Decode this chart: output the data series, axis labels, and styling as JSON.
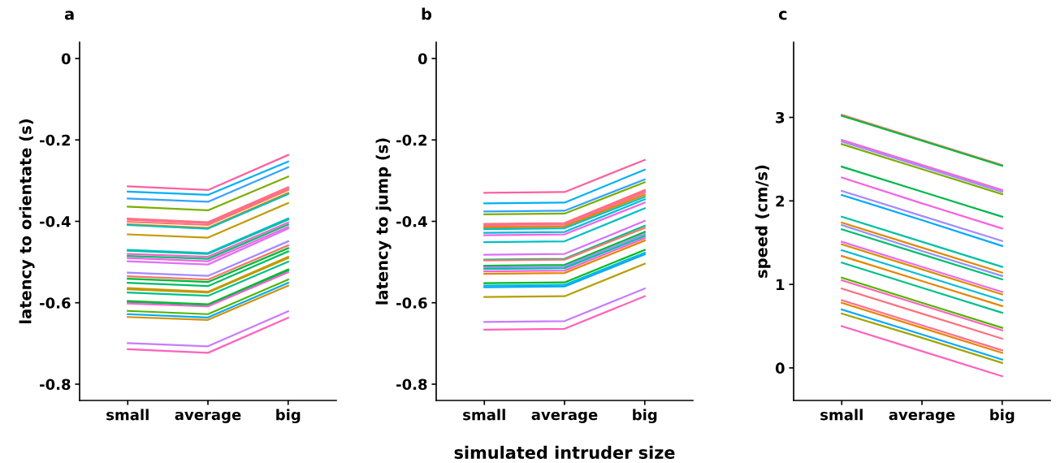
{
  "chart_data": [
    {
      "type": "line",
      "title": "a",
      "ylabel": "latency to orientate (s)",
      "categories": [
        "small",
        "average",
        "big"
      ],
      "ylim": [
        -0.84,
        0.04
      ],
      "yticks": [
        {
          "value": -0.8,
          "label": "-0.8"
        },
        {
          "value": -0.6,
          "label": "-0.6"
        },
        {
          "value": -0.4,
          "label": "-0.4"
        },
        {
          "value": -0.2,
          "label": "-0.2"
        },
        0
      ],
      "series": [
        {
          "color": "#fb61a0",
          "values": [
            -0.314,
            -0.323,
            -0.237
          ]
        },
        {
          "color": "#00b0f6",
          "values": [
            -0.327,
            -0.335,
            -0.253
          ]
        },
        {
          "color": "#35a2ff",
          "values": [
            -0.344,
            -0.352,
            -0.267
          ]
        },
        {
          "color": "#7cae00",
          "values": [
            -0.364,
            -0.373,
            -0.29
          ]
        },
        {
          "color": "#fc717f",
          "values": [
            -0.393,
            -0.402,
            -0.316
          ]
        },
        {
          "color": "#ff6c91",
          "values": [
            -0.396,
            -0.405,
            -0.32
          ]
        },
        {
          "color": "#f8766d",
          "values": [
            -0.401,
            -0.409,
            -0.323
          ]
        },
        {
          "color": "#e58700",
          "values": [
            -0.407,
            -0.416,
            -0.33
          ]
        },
        {
          "color": "#00bfc4",
          "values": [
            -0.409,
            -0.418,
            -0.333
          ]
        },
        {
          "color": "#c49a00",
          "values": [
            -0.432,
            -0.44,
            -0.355
          ]
        },
        {
          "color": "#00bcd8",
          "values": [
            -0.47,
            -0.478,
            -0.393
          ]
        },
        {
          "color": "#00c1a3",
          "values": [
            -0.472,
            -0.48,
            -0.396
          ]
        },
        {
          "color": "#ff61c9",
          "values": [
            -0.48,
            -0.487,
            -0.403
          ]
        },
        {
          "color": "#00be70",
          "values": [
            -0.485,
            -0.492,
            -0.408
          ]
        },
        {
          "color": "#f564e3",
          "values": [
            -0.49,
            -0.498,
            -0.414
          ]
        },
        {
          "color": "#dc71fa",
          "values": [
            -0.498,
            -0.506,
            -0.418
          ]
        },
        {
          "color": "#a58aff",
          "values": [
            -0.526,
            -0.534,
            -0.449
          ]
        },
        {
          "color": "#f8766d",
          "values": [
            -0.535,
            -0.543,
            -0.459
          ]
        },
        {
          "color": "#00ba38",
          "values": [
            -0.541,
            -0.549,
            -0.466
          ]
        },
        {
          "color": "#00be67",
          "values": [
            -0.551,
            -0.559,
            -0.474
          ]
        },
        {
          "color": "#d89000",
          "values": [
            -0.564,
            -0.573,
            -0.487
          ]
        },
        {
          "color": "#b79f00",
          "values": [
            -0.567,
            -0.575,
            -0.49
          ]
        },
        {
          "color": "#00c08b",
          "values": [
            -0.575,
            -0.583,
            -0.499
          ]
        },
        {
          "color": "#00b81f",
          "values": [
            -0.596,
            -0.604,
            -0.518
          ]
        },
        {
          "color": "#00bb4e",
          "values": [
            -0.598,
            -0.606,
            -0.521
          ]
        },
        {
          "color": "#fd61d1",
          "values": [
            -0.602,
            -0.609,
            -0.525
          ]
        },
        {
          "color": "#53b400",
          "values": [
            -0.62,
            -0.628,
            -0.543
          ]
        },
        {
          "color": "#00a9ff",
          "values": [
            -0.628,
            -0.636,
            -0.551
          ]
        },
        {
          "color": "#d39200",
          "values": [
            -0.635,
            -0.642,
            -0.558
          ]
        },
        {
          "color": "#c77cff",
          "values": [
            -0.699,
            -0.707,
            -0.621
          ]
        },
        {
          "color": "#ff62bc",
          "values": [
            -0.714,
            -0.723,
            -0.637
          ]
        }
      ]
    },
    {
      "type": "line",
      "title": "b",
      "ylabel": "latency to jump (s)",
      "xlabel": "simulated intruder size",
      "categories": [
        "small",
        "average",
        "big"
      ],
      "ylim": [
        -0.84,
        0.04
      ],
      "yticks": [
        {
          "value": -0.8,
          "label": "-0.8"
        },
        {
          "value": -0.6,
          "label": "-0.6"
        },
        {
          "value": -0.4,
          "label": "-0.4"
        },
        {
          "value": -0.2,
          "label": "-0.2"
        },
        0
      ],
      "series": [
        {
          "color": "#fb61a0",
          "values": [
            -0.33,
            -0.328,
            -0.249
          ]
        },
        {
          "color": "#00b0f6",
          "values": [
            -0.356,
            -0.354,
            -0.273
          ]
        },
        {
          "color": "#35a2ff",
          "values": [
            -0.376,
            -0.374,
            -0.297
          ]
        },
        {
          "color": "#7cae00",
          "values": [
            -0.383,
            -0.381,
            -0.304
          ]
        },
        {
          "color": "#fc717f",
          "values": [
            -0.406,
            -0.404,
            -0.323
          ]
        },
        {
          "color": "#ff6c91",
          "values": [
            -0.409,
            -0.407,
            -0.326
          ]
        },
        {
          "color": "#f8766d",
          "values": [
            -0.413,
            -0.411,
            -0.33
          ]
        },
        {
          "color": "#e58700",
          "values": [
            -0.415,
            -0.413,
            -0.335
          ]
        },
        {
          "color": "#00bfc4",
          "values": [
            -0.419,
            -0.417,
            -0.34
          ]
        },
        {
          "color": "#00bcd8",
          "values": [
            -0.428,
            -0.426,
            -0.346
          ]
        },
        {
          "color": "#f564e3",
          "values": [
            -0.434,
            -0.432,
            -0.354
          ]
        },
        {
          "color": "#00bfc4",
          "values": [
            -0.451,
            -0.449,
            -0.368
          ]
        },
        {
          "color": "#dc71fa",
          "values": [
            -0.482,
            -0.48,
            -0.399
          ]
        },
        {
          "color": "#00c08b",
          "values": [
            -0.494,
            -0.492,
            -0.411
          ]
        },
        {
          "color": "#f8766d",
          "values": [
            -0.496,
            -0.494,
            -0.416
          ]
        },
        {
          "color": "#00ba38",
          "values": [
            -0.509,
            -0.507,
            -0.426
          ]
        },
        {
          "color": "#a58aff",
          "values": [
            -0.513,
            -0.511,
            -0.431
          ]
        },
        {
          "color": "#00c1a3",
          "values": [
            -0.517,
            -0.515,
            -0.436
          ]
        },
        {
          "color": "#fd61d1",
          "values": [
            -0.523,
            -0.521,
            -0.441
          ]
        },
        {
          "color": "#e58700",
          "values": [
            -0.529,
            -0.527,
            -0.447
          ]
        },
        {
          "color": "#00b81f",
          "values": [
            -0.552,
            -0.55,
            -0.47
          ]
        },
        {
          "color": "#00bcd8",
          "values": [
            -0.558,
            -0.556,
            -0.477
          ]
        },
        {
          "color": "#00a9ff",
          "values": [
            -0.562,
            -0.56,
            -0.481
          ]
        },
        {
          "color": "#b79f00",
          "values": [
            -0.586,
            -0.584,
            -0.504
          ]
        },
        {
          "color": "#c77cff",
          "values": [
            -0.647,
            -0.645,
            -0.565
          ]
        },
        {
          "color": "#ff62bc",
          "values": [
            -0.666,
            -0.664,
            -0.584
          ]
        }
      ]
    },
    {
      "type": "line",
      "title": "c",
      "ylabel": "speed (cm/s)",
      "categories": [
        "small",
        "average",
        "big"
      ],
      "ylim": [
        -0.39,
        3.9
      ],
      "yticks": [
        0,
        1,
        2,
        3
      ],
      "series": [
        {
          "color": "#f8766d",
          "values": [
            3.03,
            2.73,
            2.43
          ]
        },
        {
          "color": "#00ba38",
          "values": [
            3.02,
            2.72,
            2.42
          ]
        },
        {
          "color": "#fd61d1",
          "values": [
            2.73,
            2.43,
            2.13
          ]
        },
        {
          "color": "#a58aff",
          "values": [
            2.71,
            2.41,
            2.11
          ]
        },
        {
          "color": "#7cae00",
          "values": [
            2.68,
            2.38,
            2.08
          ]
        },
        {
          "color": "#00b84a",
          "values": [
            2.41,
            2.11,
            1.81
          ]
        },
        {
          "color": "#f564e3",
          "values": [
            2.28,
            1.97,
            1.67
          ]
        },
        {
          "color": "#a58aff",
          "values": [
            2.12,
            1.82,
            1.52
          ]
        },
        {
          "color": "#00a9ff",
          "values": [
            2.07,
            1.77,
            1.46
          ]
        },
        {
          "color": "#00c1a3",
          "values": [
            1.81,
            1.51,
            1.21
          ]
        },
        {
          "color": "#e58700",
          "values": [
            1.74,
            1.44,
            1.14
          ]
        },
        {
          "color": "#8f91ff",
          "values": [
            1.71,
            1.4,
            1.1
          ]
        },
        {
          "color": "#00be70",
          "values": [
            1.66,
            1.36,
            1.06
          ]
        },
        {
          "color": "#e76bf3",
          "values": [
            1.51,
            1.21,
            0.91
          ]
        },
        {
          "color": "#d89000",
          "values": [
            1.48,
            1.18,
            0.88
          ]
        },
        {
          "color": "#00bcd8",
          "values": [
            1.41,
            1.11,
            0.81
          ]
        },
        {
          "color": "#e58700",
          "values": [
            1.34,
            1.04,
            0.74
          ]
        },
        {
          "color": "#00c08b",
          "values": [
            1.26,
            0.96,
            0.66
          ]
        },
        {
          "color": "#53b400",
          "values": [
            1.08,
            0.78,
            0.48
          ]
        },
        {
          "color": "#ff62bc",
          "values": [
            1.05,
            0.75,
            0.45
          ]
        },
        {
          "color": "#fc717f",
          "values": [
            0.95,
            0.65,
            0.35
          ]
        },
        {
          "color": "#ff6c91",
          "values": [
            0.81,
            0.51,
            0.21
          ]
        },
        {
          "color": "#e58700",
          "values": [
            0.78,
            0.48,
            0.18
          ]
        },
        {
          "color": "#00a9ff",
          "values": [
            0.7,
            0.4,
            0.1
          ]
        },
        {
          "color": "#a3a500",
          "values": [
            0.65,
            0.36,
            0.06
          ]
        },
        {
          "color": "#ff62bc",
          "values": [
            0.5,
            0.2,
            -0.1
          ]
        }
      ]
    }
  ]
}
